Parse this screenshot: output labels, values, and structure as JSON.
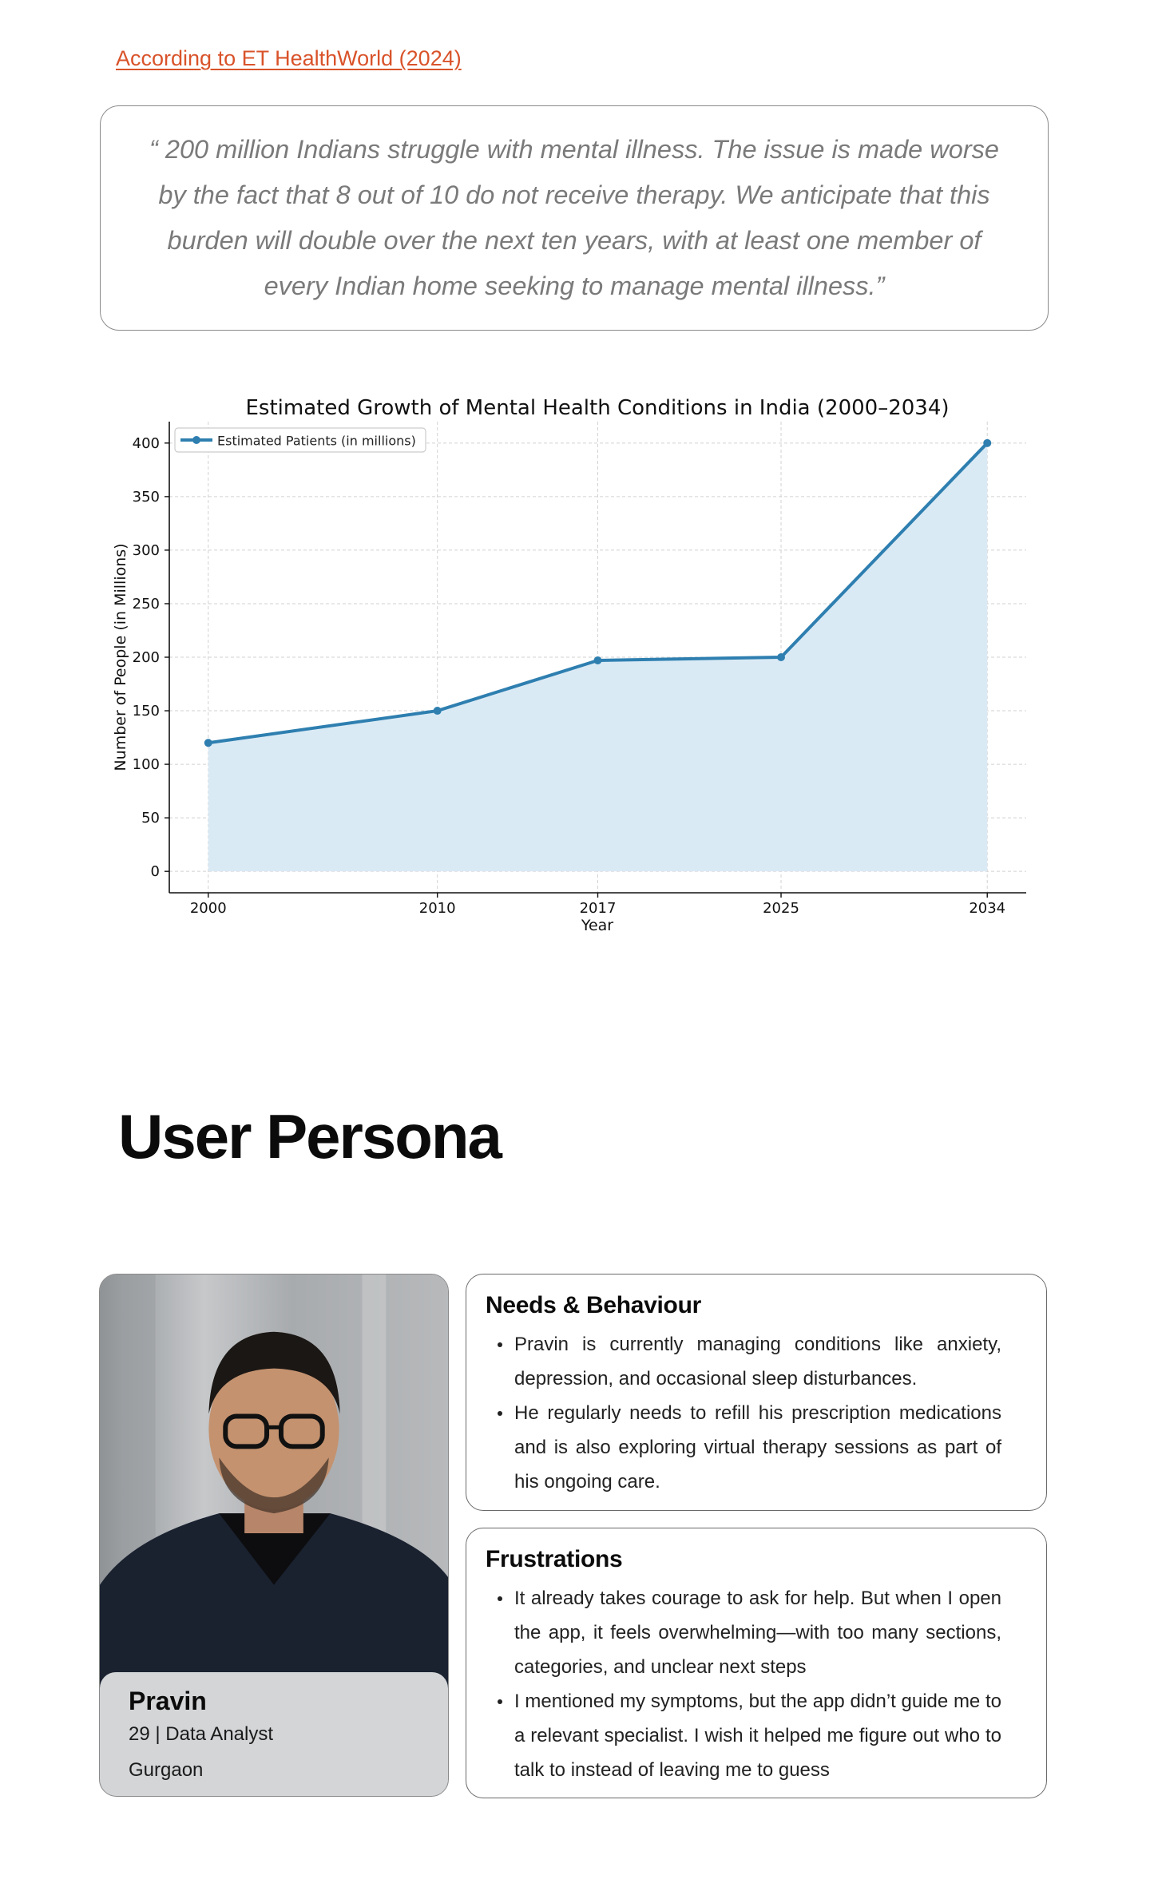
{
  "source": {
    "link_text": "According to ET HealthWorld (2024)"
  },
  "quote": {
    "text": "“ 200 million Indians struggle with mental illness. The issue is made worse by the fact that 8 out of 10 do not receive therapy. We anticipate that this burden will double over the next ten years, with at least one member of every Indian home seeking to manage mental illness.”"
  },
  "chart_data": {
    "type": "line",
    "title": "Estimated Growth of Mental Health Conditions in India (2000–2034)",
    "xlabel": "Year",
    "ylabel": "Number of People (in Millions)",
    "x": [
      2000,
      2010,
      2017,
      2025,
      2034
    ],
    "x_tick_labels": [
      "2000",
      "2010",
      "2017",
      "2025",
      "2034"
    ],
    "series": [
      {
        "name": "Estimated Patients (in millions)",
        "values": [
          120,
          150,
          197,
          200,
          400
        ],
        "color": "#2e7fb0",
        "fill": "#daeaf5"
      }
    ],
    "xlim": [
      1998.3,
      2035.7
    ],
    "ylim": [
      -20,
      420
    ],
    "y_ticks": [
      0,
      50,
      100,
      150,
      200,
      250,
      300,
      350,
      400
    ],
    "grid": true,
    "area_fill": true,
    "legend_position": "top-left"
  },
  "persona_section": {
    "title": "User Persona",
    "persona": {
      "name": "Pravin",
      "meta": "29 | Data Analyst",
      "city": "Gurgaon"
    },
    "needs": {
      "title": "Needs & Behaviour",
      "items": [
        "Pravin is currently managing conditions like anxiety, depression, and occasional sleep disturbances.",
        "He regularly needs to refill his prescription medications and is also exploring virtual therapy sessions as part of his ongoing care."
      ]
    },
    "frustrations": {
      "title": "Frustrations",
      "items": [
        "It already takes courage to ask for help. But when I open the app, it feels overwhelming—with too many sections, categories, and unclear next steps",
        "I mentioned my symptoms, but the app didn’t guide me to a relevant specialist. I wish it helped me figure out who to talk to instead of leaving me to guess"
      ]
    }
  }
}
